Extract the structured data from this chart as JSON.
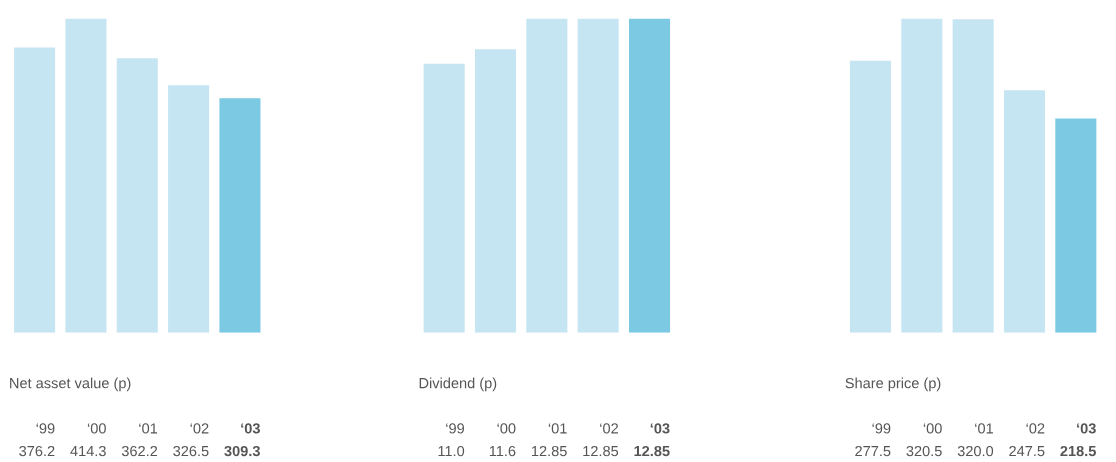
{
  "chart_data": [
    {
      "type": "bar",
      "title": "Net asset value (p)",
      "categories": [
        "‘99",
        "‘00",
        "‘01",
        "‘02",
        "‘03"
      ],
      "values": [
        376.2,
        414.3,
        362.2,
        326.5,
        309.3
      ],
      "value_labels": [
        "376.2",
        "414.3",
        "362.2",
        "326.5",
        "309.3"
      ],
      "colors": [
        "#c6e5f2",
        "#c6e5f2",
        "#c6e5f2",
        "#c6e5f2",
        "#7cc9e4"
      ]
    },
    {
      "type": "bar",
      "title": "Dividend (p)",
      "categories": [
        "‘99",
        "‘00",
        "‘01",
        "‘02",
        "‘03"
      ],
      "values": [
        11.0,
        11.6,
        12.85,
        12.85,
        12.85
      ],
      "value_labels": [
        "11.0",
        "11.6",
        "12.85",
        "12.85",
        "12.85"
      ],
      "colors": [
        "#c6e5f2",
        "#c6e5f2",
        "#c6e5f2",
        "#c6e5f2",
        "#7cc9e4"
      ]
    },
    {
      "type": "bar",
      "title": "Share price (p)",
      "categories": [
        "‘99",
        "‘00",
        "‘01",
        "‘02",
        "‘03"
      ],
      "values": [
        277.5,
        320.5,
        320.0,
        247.5,
        218.5
      ],
      "value_labels": [
        "277.5",
        "320.5",
        "320.0",
        "247.5",
        "218.5"
      ],
      "colors": [
        "#c6e5f2",
        "#c6e5f2",
        "#c6e5f2",
        "#c6e5f2",
        "#7cc9e4"
      ]
    }
  ]
}
